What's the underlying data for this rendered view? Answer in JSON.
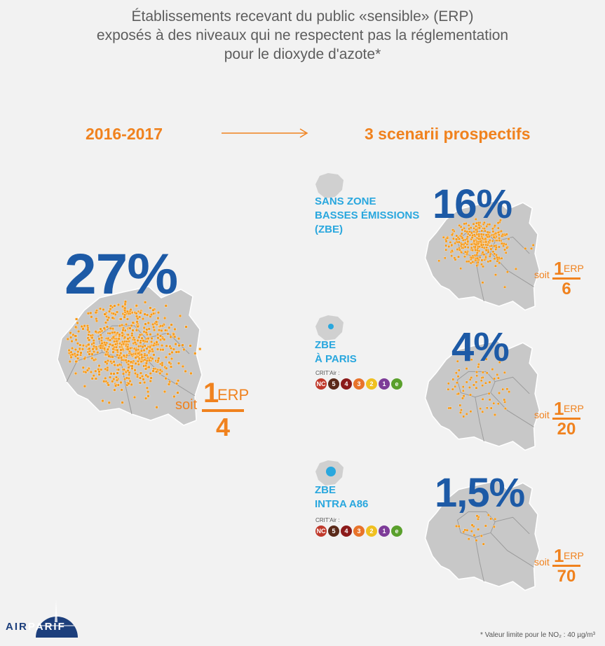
{
  "title": {
    "line1": "Établissements recevant du public «sensible» (ERP)",
    "line2": "exposés à des niveaux qui ne respectent pas la réglementation",
    "line3": "pour le dioxyde d'azote*"
  },
  "left_heading": "2016-2017",
  "right_heading": "3 scenarii prospectifs",
  "main": {
    "percent": "27%",
    "soit": "soit",
    "numerator": "1",
    "unit": "ERP",
    "denominator": "4"
  },
  "scenarios": [
    {
      "label_lines": [
        "SANS ZONE",
        "BASSES ÉMISSIONS",
        "(ZBE)"
      ],
      "percent": "16%",
      "soit": "soit",
      "numerator": "1",
      "unit": "ERP",
      "denominator": "6"
    },
    {
      "label_lines": [
        "ZBE",
        "À PARIS"
      ],
      "crit_air_label": "CRIT'Air :",
      "percent": "4%",
      "soit": "soit",
      "numerator": "1",
      "unit": "ERP",
      "denominator": "20"
    },
    {
      "label_lines": [
        "ZBE",
        "INTRA A86"
      ],
      "crit_air_label": "CRIT'Air :",
      "percent": "1,5%",
      "soit": "soit",
      "numerator": "1",
      "unit": "ERP",
      "denominator": "70"
    }
  ],
  "crit_air_badges": [
    {
      "text": "NC",
      "color": "#c0392b"
    },
    {
      "text": "5",
      "color": "#5a2a1a"
    },
    {
      "text": "4",
      "color": "#8b1a1a"
    },
    {
      "text": "3",
      "color": "#e8732a"
    },
    {
      "text": "2",
      "color": "#f0c020"
    },
    {
      "text": "1",
      "color": "#7d3c98"
    },
    {
      "text": "e",
      "color": "#5aa02c"
    }
  ],
  "footnote": "* Valeur limite pour le NO₂ : 40 µg/m³",
  "logo": {
    "air": "AIR",
    "parif": "PARIF"
  },
  "colors": {
    "orange": "#f0821e",
    "blue": "#1d5aa6",
    "light_blue": "#29a7de",
    "map_gray": "#c8c8c8"
  }
}
